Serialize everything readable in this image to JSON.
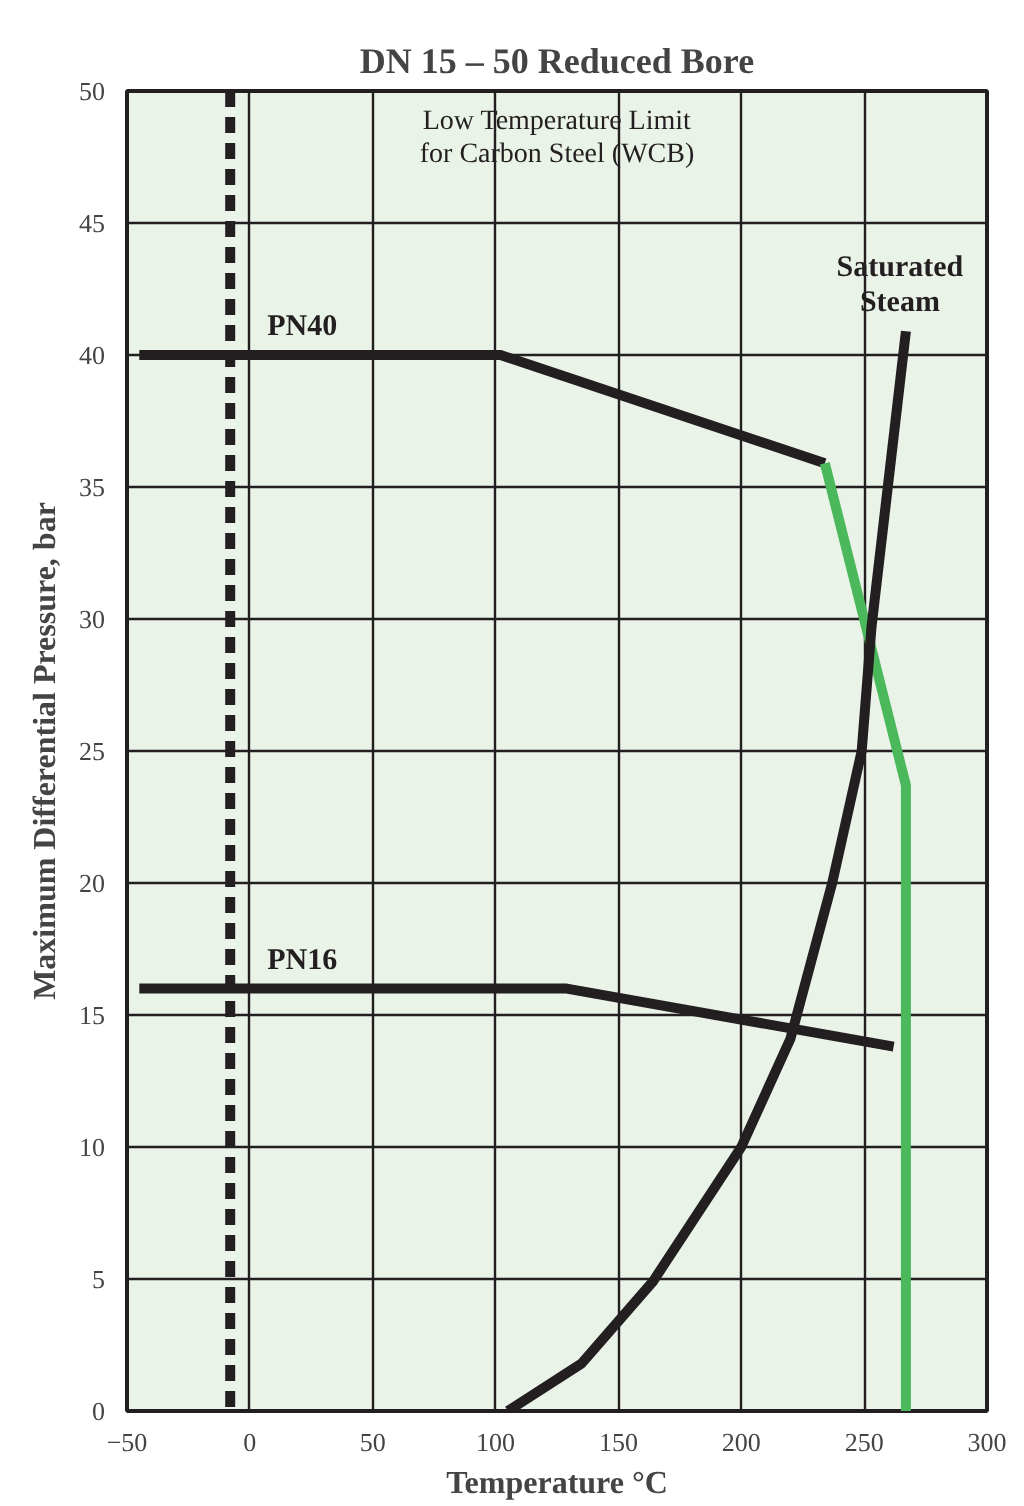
{
  "chart_data": {
    "type": "line",
    "title": "DN 15 – 50 Reduced Bore",
    "xlabel": "Temperature °C",
    "ylabel": "Maximum Differential Pressure, bar",
    "xlim": [
      -50,
      300
    ],
    "ylim": [
      0,
      50
    ],
    "xticks": [
      -50,
      0,
      50,
      100,
      150,
      200,
      250,
      300
    ],
    "yticks": [
      0,
      5,
      10,
      15,
      20,
      25,
      30,
      35,
      40,
      45,
      50
    ],
    "grid": true,
    "marker": "none",
    "line_style": "solid",
    "series": [
      {
        "name": "PN40",
        "color": "#231f20",
        "x": [
          -45,
          102,
          234
        ],
        "values": [
          40,
          40,
          35.9
        ]
      },
      {
        "color": "#4cb85c",
        "x": [
          234,
          267,
          267
        ],
        "values": [
          35.9,
          23.7,
          0
        ]
      },
      {
        "name": "PN16",
        "color": "#231f20",
        "x": [
          -45,
          129,
          262
        ],
        "values": [
          16,
          16,
          13.8
        ]
      },
      {
        "name": "Saturated Steam",
        "color": "#231f20",
        "x": [
          105,
          135,
          164,
          200,
          220,
          237,
          249,
          253,
          267
        ],
        "values": [
          0,
          1.8,
          4.9,
          10,
          14.1,
          20,
          25,
          29.7,
          40.9
        ]
      }
    ],
    "ref_lines": [
      {
        "axis": "x",
        "value": -8,
        "color": "#231f20",
        "line_style": "dashed"
      }
    ],
    "annotations": [
      "Low Temperature Limit\nfor Carbon Steel (WCB)"
    ]
  }
}
